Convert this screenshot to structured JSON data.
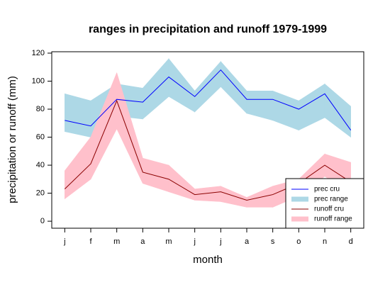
{
  "chart_data": {
    "type": "line_range",
    "title": "ranges in precipitation and runoff 1979-1999",
    "x_label": "month",
    "y_label": "precipitation or runoff (mm)",
    "categories": [
      "j",
      "f",
      "m",
      "a",
      "m",
      "j",
      "j",
      "a",
      "s",
      "o",
      "n",
      "d"
    ],
    "ylim": [
      -5,
      121
    ],
    "yticks": [
      0,
      20,
      40,
      60,
      80,
      100,
      120
    ],
    "legend_position": "bottomright",
    "series": [
      {
        "name": "prec range",
        "kind": "range",
        "color": "#add8e6",
        "upper": [
          91,
          86,
          98,
          95,
          116,
          93,
          114,
          93,
          93,
          86,
          98,
          82
        ],
        "lower": [
          64,
          60,
          75,
          73,
          89,
          78,
          96,
          77,
          72,
          65,
          74,
          60
        ]
      },
      {
        "name": "runoff range",
        "kind": "range",
        "color": "#ffc0cb",
        "upper": [
          36,
          60,
          106,
          45,
          40,
          23,
          25,
          17,
          25,
          30,
          48,
          42
        ],
        "lower": [
          16,
          30,
          66,
          27,
          21,
          15,
          14,
          10,
          10,
          18,
          32,
          20
        ]
      },
      {
        "name": "prec cru",
        "kind": "line",
        "color": "#0000ff",
        "values": [
          72,
          68,
          87,
          85,
          103,
          89,
          108,
          87,
          87,
          80,
          91,
          65
        ]
      },
      {
        "name": "runoff cru",
        "kind": "line",
        "color": "#8b0000",
        "values": [
          23,
          41,
          86,
          35,
          30,
          19,
          21,
          15,
          19,
          27,
          40,
          28
        ]
      }
    ],
    "legend_order": [
      2,
      0,
      3,
      1
    ]
  }
}
